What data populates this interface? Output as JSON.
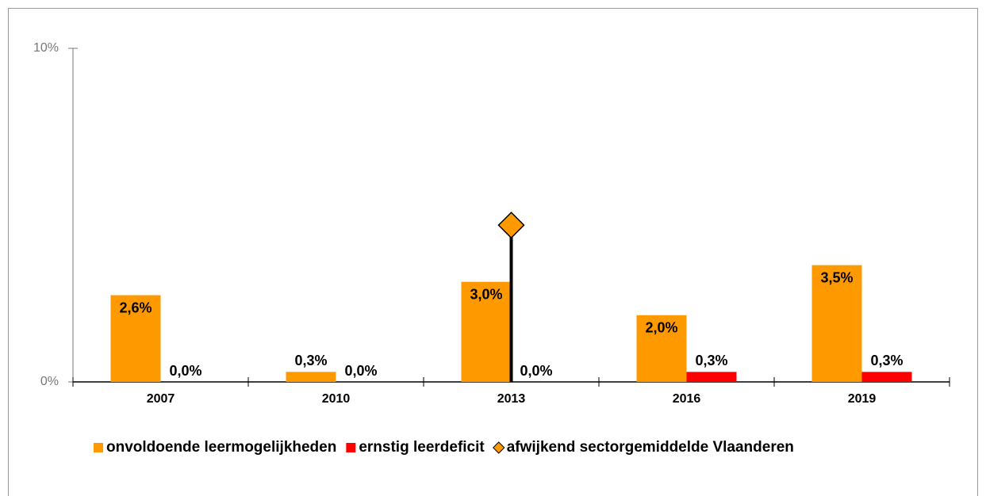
{
  "chart_data": {
    "type": "bar",
    "categories": [
      "2007",
      "2010",
      "2013",
      "2016",
      "2019"
    ],
    "series": [
      {
        "name": "onvoldoende leermogelijkheden",
        "color": "#ff9900",
        "values": [
          2.6,
          0.3,
          3.0,
          2.0,
          3.5
        ],
        "value_labels": [
          "2,6%",
          "0,3%",
          "3,0%",
          "2,0%",
          "3,5%"
        ]
      },
      {
        "name": "ernstig leerdeficit",
        "color": "#ff0000",
        "values": [
          0.0,
          0.0,
          0.0,
          0.3,
          0.3
        ],
        "value_labels": [
          "0,0%",
          "0,0%",
          "0,0%",
          "0,3%",
          "0,3%"
        ]
      },
      {
        "name": "afwijkend sectorgemiddelde Vlaanderen",
        "color": "#ff9900",
        "marker": "diamond",
        "values": [
          null,
          null,
          4.7,
          null,
          null
        ]
      }
    ],
    "ylim": [
      0,
      10
    ],
    "yticks": [
      {
        "value": 0,
        "label": "0%"
      },
      {
        "value": 10,
        "label": "10%"
      }
    ],
    "grid": false,
    "legend": "bottom"
  }
}
